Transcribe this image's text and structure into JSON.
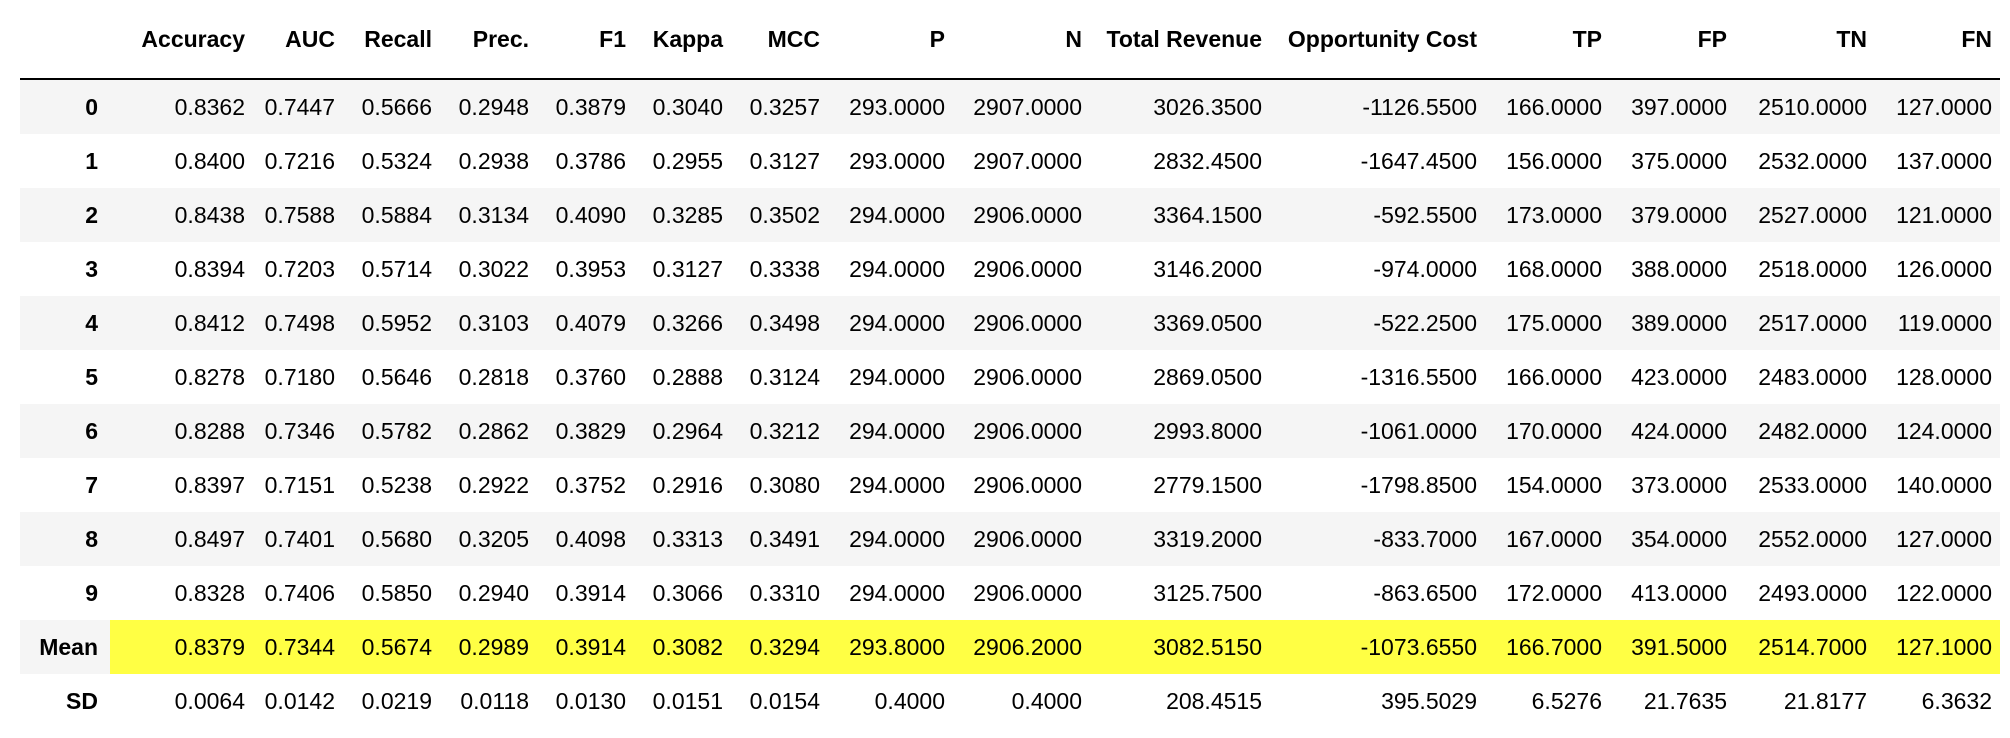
{
  "table": {
    "columns": [
      "",
      "Accuracy",
      "AUC",
      "Recall",
      "Prec.",
      "F1",
      "Kappa",
      "MCC",
      "P",
      "N",
      "Total Revenue",
      "Opportunity Cost",
      "TP",
      "FP",
      "TN",
      "FN"
    ],
    "rows": [
      {
        "label": "0",
        "values": [
          "0.8362",
          "0.7447",
          "0.5666",
          "0.2948",
          "0.3879",
          "0.3040",
          "0.3257",
          "293.0000",
          "2907.0000",
          "3026.3500",
          "-1126.5500",
          "166.0000",
          "397.0000",
          "2510.0000",
          "127.0000"
        ]
      },
      {
        "label": "1",
        "values": [
          "0.8400",
          "0.7216",
          "0.5324",
          "0.2938",
          "0.3786",
          "0.2955",
          "0.3127",
          "293.0000",
          "2907.0000",
          "2832.4500",
          "-1647.4500",
          "156.0000",
          "375.0000",
          "2532.0000",
          "137.0000"
        ]
      },
      {
        "label": "2",
        "values": [
          "0.8438",
          "0.7588",
          "0.5884",
          "0.3134",
          "0.4090",
          "0.3285",
          "0.3502",
          "294.0000",
          "2906.0000",
          "3364.1500",
          "-592.5500",
          "173.0000",
          "379.0000",
          "2527.0000",
          "121.0000"
        ]
      },
      {
        "label": "3",
        "values": [
          "0.8394",
          "0.7203",
          "0.5714",
          "0.3022",
          "0.3953",
          "0.3127",
          "0.3338",
          "294.0000",
          "2906.0000",
          "3146.2000",
          "-974.0000",
          "168.0000",
          "388.0000",
          "2518.0000",
          "126.0000"
        ]
      },
      {
        "label": "4",
        "values": [
          "0.8412",
          "0.7498",
          "0.5952",
          "0.3103",
          "0.4079",
          "0.3266",
          "0.3498",
          "294.0000",
          "2906.0000",
          "3369.0500",
          "-522.2500",
          "175.0000",
          "389.0000",
          "2517.0000",
          "119.0000"
        ]
      },
      {
        "label": "5",
        "values": [
          "0.8278",
          "0.7180",
          "0.5646",
          "0.2818",
          "0.3760",
          "0.2888",
          "0.3124",
          "294.0000",
          "2906.0000",
          "2869.0500",
          "-1316.5500",
          "166.0000",
          "423.0000",
          "2483.0000",
          "128.0000"
        ]
      },
      {
        "label": "6",
        "values": [
          "0.8288",
          "0.7346",
          "0.5782",
          "0.2862",
          "0.3829",
          "0.2964",
          "0.3212",
          "294.0000",
          "2906.0000",
          "2993.8000",
          "-1061.0000",
          "170.0000",
          "424.0000",
          "2482.0000",
          "124.0000"
        ]
      },
      {
        "label": "7",
        "values": [
          "0.8397",
          "0.7151",
          "0.5238",
          "0.2922",
          "0.3752",
          "0.2916",
          "0.3080",
          "294.0000",
          "2906.0000",
          "2779.1500",
          "-1798.8500",
          "154.0000",
          "373.0000",
          "2533.0000",
          "140.0000"
        ]
      },
      {
        "label": "8",
        "values": [
          "0.8497",
          "0.7401",
          "0.5680",
          "0.3205",
          "0.4098",
          "0.3313",
          "0.3491",
          "294.0000",
          "2906.0000",
          "3319.2000",
          "-833.7000",
          "167.0000",
          "354.0000",
          "2552.0000",
          "127.0000"
        ]
      },
      {
        "label": "9",
        "values": [
          "0.8328",
          "0.7406",
          "0.5850",
          "0.2940",
          "0.3914",
          "0.3066",
          "0.3310",
          "294.0000",
          "2906.0000",
          "3125.7500",
          "-863.6500",
          "172.0000",
          "413.0000",
          "2493.0000",
          "122.0000"
        ]
      },
      {
        "label": "Mean",
        "values": [
          "0.8379",
          "0.7344",
          "0.5674",
          "0.2989",
          "0.3914",
          "0.3082",
          "0.3294",
          "293.8000",
          "2906.2000",
          "3082.5150",
          "-1073.6550",
          "166.7000",
          "391.5000",
          "2514.7000",
          "127.1000"
        ]
      },
      {
        "label": "SD",
        "values": [
          "0.0064",
          "0.0142",
          "0.0219",
          "0.0118",
          "0.0130",
          "0.0151",
          "0.0154",
          "0.4000",
          "0.4000",
          "208.4515",
          "395.5029",
          "6.5276",
          "21.7635",
          "21.8177",
          "6.3632"
        ]
      }
    ],
    "highlight_row": "Mean",
    "highlight_color": "#ffff44"
  }
}
